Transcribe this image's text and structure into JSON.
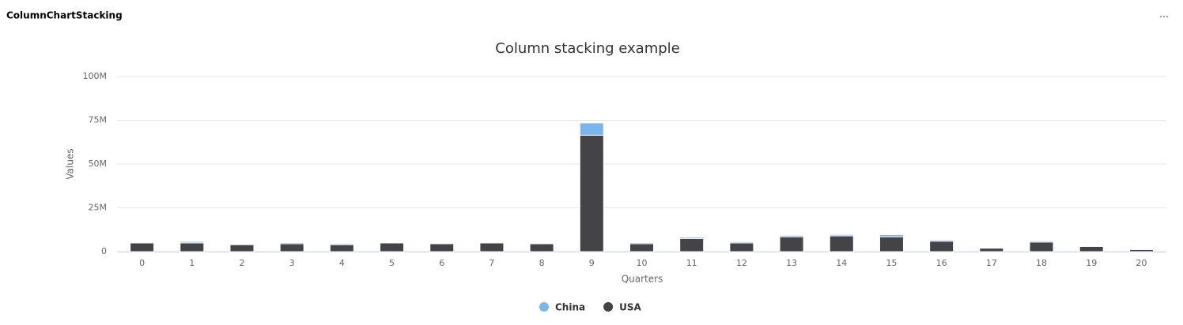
{
  "header": {
    "title": "ColumnChartStacking"
  },
  "chart_data": {
    "type": "stacked_bar",
    "title": "Column stacking example",
    "x_label": "Quarters",
    "y_label": "Values",
    "categories": [
      "0",
      "1",
      "2",
      "3",
      "4",
      "5",
      "6",
      "7",
      "8",
      "9",
      "10",
      "11",
      "12",
      "13",
      "14",
      "15",
      "16",
      "17",
      "18",
      "19",
      "20"
    ],
    "series": [
      {
        "name": "China",
        "color": "#7cb5ec",
        "values": [
          0.2,
          0.8,
          0.2,
          0.7,
          0.6,
          0.2,
          0.2,
          0.2,
          0.2,
          7,
          0.7,
          0.8,
          0.7,
          0.8,
          0.8,
          1.2,
          0.7,
          0.2,
          0.7,
          0.2,
          0.2
        ]
      },
      {
        "name": "USA",
        "color": "#434348",
        "values": [
          5,
          5,
          4,
          4.5,
          4,
          5,
          4.5,
          5,
          4.5,
          66.5,
          4.5,
          7.5,
          5,
          8.5,
          9,
          8.5,
          6,
          2,
          5.5,
          3,
          1.2
        ]
      }
    ],
    "ylim": [
      0,
      100
    ],
    "yticks": [
      0,
      {
        "value": 25,
        "label": "25M"
      },
      {
        "value": 50,
        "label": "50M"
      },
      {
        "value": 75,
        "label": "75M"
      },
      {
        "value": 100,
        "label": "100M"
      }
    ],
    "grid": true,
    "legend": "bottom"
  }
}
